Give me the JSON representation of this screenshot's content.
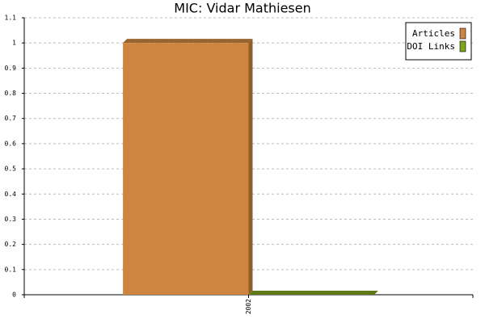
{
  "chart_data": {
    "type": "bar",
    "title": "MIC: Vidar Mathiesen",
    "categories": [
      "2002"
    ],
    "series": [
      {
        "name": "Articles",
        "color": "#cd853f",
        "values": [
          1
        ]
      },
      {
        "name": "DOI Links",
        "color": "#7fa31a",
        "values": [
          0
        ]
      }
    ],
    "ylim": [
      0,
      1.1
    ],
    "yticks": [
      0,
      0.1,
      0.2,
      0.3,
      0.4,
      0.5,
      0.6,
      0.7,
      0.8,
      0.9,
      1,
      1.1
    ],
    "grid": true,
    "legend": "top-right"
  }
}
